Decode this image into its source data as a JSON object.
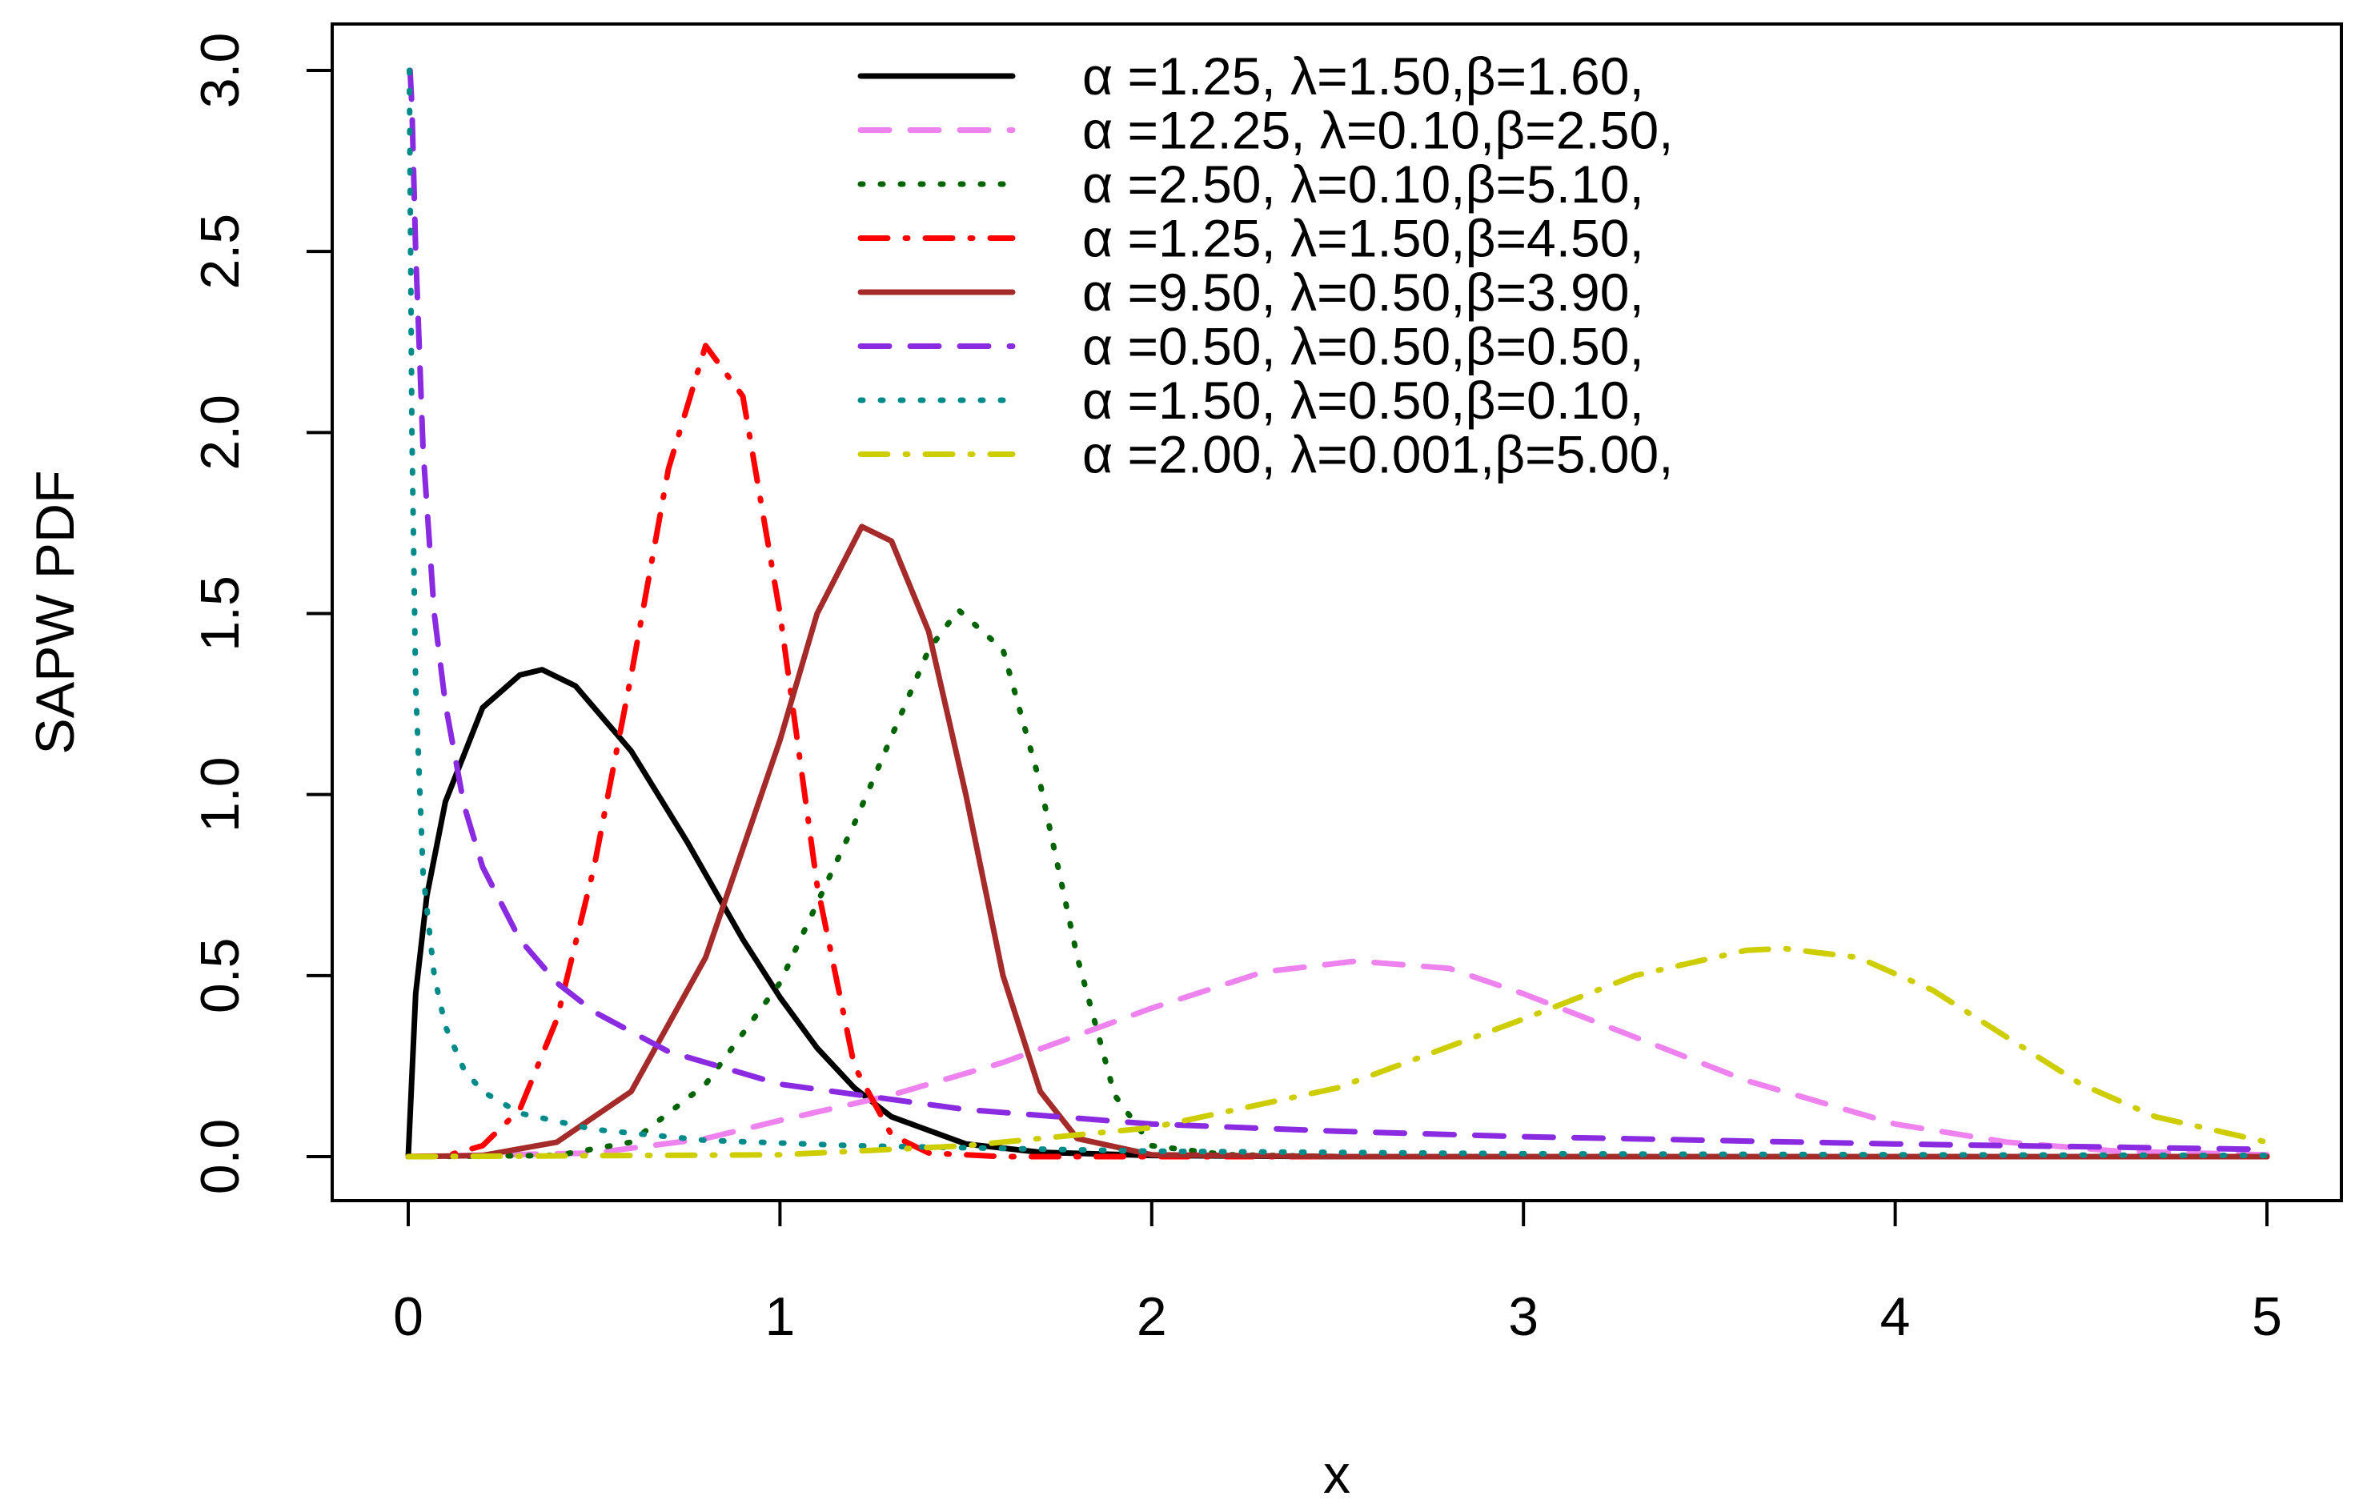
{
  "chart_data": {
    "type": "line",
    "xlabel": "x",
    "ylabel": "SAPW PDF",
    "xlim": [
      0,
      5
    ],
    "ylim": [
      0,
      3
    ],
    "x_ticks": [
      "0",
      "1",
      "2",
      "3",
      "4",
      "5"
    ],
    "y_ticks": [
      "0.0",
      "0.5",
      "1.0",
      "1.5",
      "2.0",
      "2.5",
      "3.0"
    ],
    "grid": false,
    "legend_position": "top-right",
    "series": [
      {
        "name": "α =1.25, λ=1.50,β=1.60,",
        "color": "#000000",
        "line_style": "solid",
        "x": [
          0,
          0.02,
          0.05,
          0.1,
          0.2,
          0.3,
          0.36,
          0.45,
          0.6,
          0.75,
          0.9,
          1.0,
          1.1,
          1.2,
          1.3,
          1.5,
          1.7,
          2.0,
          2.5,
          3.0,
          4.0,
          5.0
        ],
        "y": [
          0,
          0.45,
          0.72,
          0.98,
          1.24,
          1.33,
          1.345,
          1.3,
          1.12,
          0.87,
          0.6,
          0.44,
          0.3,
          0.19,
          0.11,
          0.035,
          0.012,
          0.003,
          0,
          0,
          0,
          0
        ]
      },
      {
        "name": "α =12.25, λ=0.10,β=2.50,",
        "color": "#ee82ee",
        "line_style": "dashed",
        "x": [
          0,
          0.5,
          0.8,
          1.0,
          1.3,
          1.6,
          2.0,
          2.3,
          2.55,
          2.8,
          3.0,
          3.3,
          3.6,
          4.0,
          4.3,
          4.6,
          5.0
        ],
        "y": [
          0,
          0.01,
          0.05,
          0.1,
          0.17,
          0.26,
          0.41,
          0.51,
          0.54,
          0.52,
          0.45,
          0.33,
          0.21,
          0.09,
          0.04,
          0.015,
          0.005
        ]
      },
      {
        "name": "α =2.50, λ=0.10,β=5.10,",
        "color": "#006400",
        "line_style": "dotted",
        "x": [
          0,
          0.4,
          0.6,
          0.8,
          1.0,
          1.2,
          1.4,
          1.48,
          1.6,
          1.7,
          1.8,
          1.9,
          2.0,
          2.2,
          2.5,
          3.0,
          5.0
        ],
        "y": [
          0,
          0.003,
          0.04,
          0.2,
          0.48,
          0.92,
          1.4,
          1.51,
          1.4,
          1.03,
          0.55,
          0.17,
          0.03,
          0.005,
          0,
          0,
          0
        ]
      },
      {
        "name": "α =1.25, λ=1.50,β=4.50,",
        "color": "#ff0000",
        "line_style": "dashdot",
        "x": [
          0,
          0.1,
          0.2,
          0.3,
          0.4,
          0.5,
          0.6,
          0.7,
          0.8,
          0.9,
          1.0,
          1.1,
          1.2,
          1.3,
          1.4,
          1.6,
          2.0,
          3.0,
          5.0
        ],
        "y": [
          0,
          0.002,
          0.03,
          0.13,
          0.38,
          0.8,
          1.33,
          1.9,
          2.24,
          2.1,
          1.5,
          0.75,
          0.25,
          0.06,
          0.01,
          0,
          0,
          0,
          0
        ]
      },
      {
        "name": "α =9.50, λ=0.50,β=3.90,",
        "color": "#a52a2a",
        "line_style": "solid",
        "x": [
          0,
          0.2,
          0.4,
          0.6,
          0.8,
          1.0,
          1.1,
          1.22,
          1.3,
          1.4,
          1.5,
          1.6,
          1.7,
          1.8,
          2.0,
          2.5,
          5.0
        ],
        "y": [
          0,
          0.003,
          0.04,
          0.18,
          0.55,
          1.15,
          1.5,
          1.74,
          1.7,
          1.45,
          1.0,
          0.5,
          0.18,
          0.05,
          0.005,
          0,
          0
        ]
      },
      {
        "name": "α =0.50, λ=0.50,β=0.50,",
        "color": "#8a2be2",
        "line_style": "dashed",
        "x": [
          0.005,
          0.01,
          0.02,
          0.04,
          0.07,
          0.1,
          0.15,
          0.2,
          0.3,
          0.4,
          0.5,
          0.7,
          1.0,
          1.5,
          2.0,
          2.5,
          3.0,
          4.0,
          5.0
        ],
        "y": [
          3.0,
          2.9,
          2.5,
          1.95,
          1.5,
          1.25,
          0.97,
          0.8,
          0.6,
          0.48,
          0.4,
          0.29,
          0.2,
          0.13,
          0.09,
          0.07,
          0.055,
          0.035,
          0.02
        ]
      },
      {
        "name": "α =1.50, λ=0.50,β=0.10,",
        "color": "#008b8b",
        "line_style": "dotted",
        "x": [
          0.003,
          0.005,
          0.01,
          0.02,
          0.04,
          0.07,
          0.1,
          0.15,
          0.2,
          0.3,
          0.5,
          0.8,
          1.2,
          2.0,
          3.0,
          4.0,
          5.0
        ],
        "y": [
          3.0,
          2.7,
          2.0,
          1.3,
          0.78,
          0.5,
          0.36,
          0.24,
          0.18,
          0.12,
          0.075,
          0.045,
          0.03,
          0.015,
          0.008,
          0.005,
          0.003
        ]
      },
      {
        "name": "α =2.00, λ=0.001,β=5.00,",
        "color": "#cdcd00",
        "line_style": "dashdot",
        "x": [
          0,
          1.0,
          1.5,
          2.0,
          2.5,
          3.0,
          3.3,
          3.6,
          3.7,
          3.9,
          4.1,
          4.3,
          4.5,
          4.7,
          5.0
        ],
        "y": [
          0,
          0.005,
          0.03,
          0.08,
          0.19,
          0.38,
          0.5,
          0.57,
          0.575,
          0.55,
          0.46,
          0.33,
          0.2,
          0.11,
          0.04
        ]
      }
    ]
  }
}
